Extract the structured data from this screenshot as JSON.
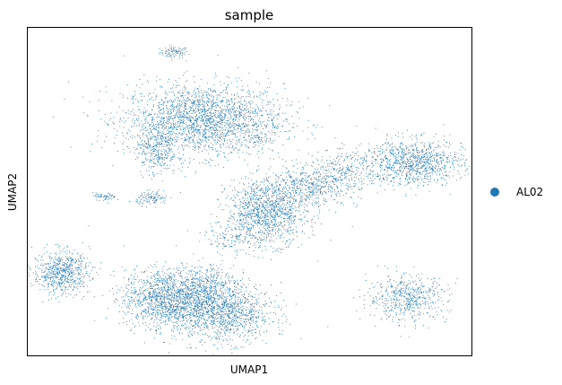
{
  "chart_data": {
    "type": "scatter",
    "title": "sample",
    "xlabel": "UMAP1",
    "ylabel": "UMAP2",
    "xlim": [
      0,
      100
    ],
    "ylim": [
      0,
      100
    ],
    "grid": false,
    "legend_position": "right",
    "series": [
      {
        "name": "AL02",
        "color": "#1f77b4",
        "clusters": [
          {
            "cx": 32.9,
            "cy": 92.6,
            "sx": 1.6,
            "sy": 0.9,
            "n": 90
          },
          {
            "cx": 39.5,
            "cy": 72.0,
            "sx": 9.0,
            "sy": 5.5,
            "n": 2200
          },
          {
            "cx": 29.0,
            "cy": 64.0,
            "sx": 2.3,
            "sy": 4.5,
            "n": 350
          },
          {
            "cx": 52.5,
            "cy": 66.0,
            "sx": 1.3,
            "sy": 0.9,
            "n": 35
          },
          {
            "cx": 17.2,
            "cy": 48.5,
            "sx": 1.3,
            "sy": 0.6,
            "n": 60
          },
          {
            "cx": 28.0,
            "cy": 48.0,
            "sx": 1.8,
            "sy": 1.0,
            "n": 110
          },
          {
            "cx": 53.8,
            "cy": 44.0,
            "sx": 4.5,
            "sy": 5.0,
            "n": 1150
          },
          {
            "cx": 63.5,
            "cy": 51.5,
            "sx": 5.5,
            "sy": 3.0,
            "n": 500
          },
          {
            "cx": 71.5,
            "cy": 57.0,
            "sx": 4.0,
            "sy": 3.0,
            "n": 260
          },
          {
            "cx": 87.0,
            "cy": 59.0,
            "sx": 5.5,
            "sy": 3.5,
            "n": 950
          },
          {
            "cx": 7.5,
            "cy": 25.5,
            "sx": 3.2,
            "sy": 3.3,
            "n": 650
          },
          {
            "cx": 31.5,
            "cy": 17.5,
            "sx": 5.0,
            "sy": 4.5,
            "n": 1400
          },
          {
            "cx": 44.0,
            "cy": 13.0,
            "sx": 5.5,
            "sy": 4.5,
            "n": 1200
          },
          {
            "cx": 41.0,
            "cy": 22.0,
            "sx": 3.0,
            "sy": 3.0,
            "n": 300
          },
          {
            "cx": 85.5,
            "cy": 17.5,
            "sx": 4.5,
            "sy": 3.5,
            "n": 550
          },
          {
            "cx": 46.5,
            "cy": 36.0,
            "sx": 3.5,
            "sy": 2.5,
            "n": 150
          }
        ]
      }
    ]
  }
}
